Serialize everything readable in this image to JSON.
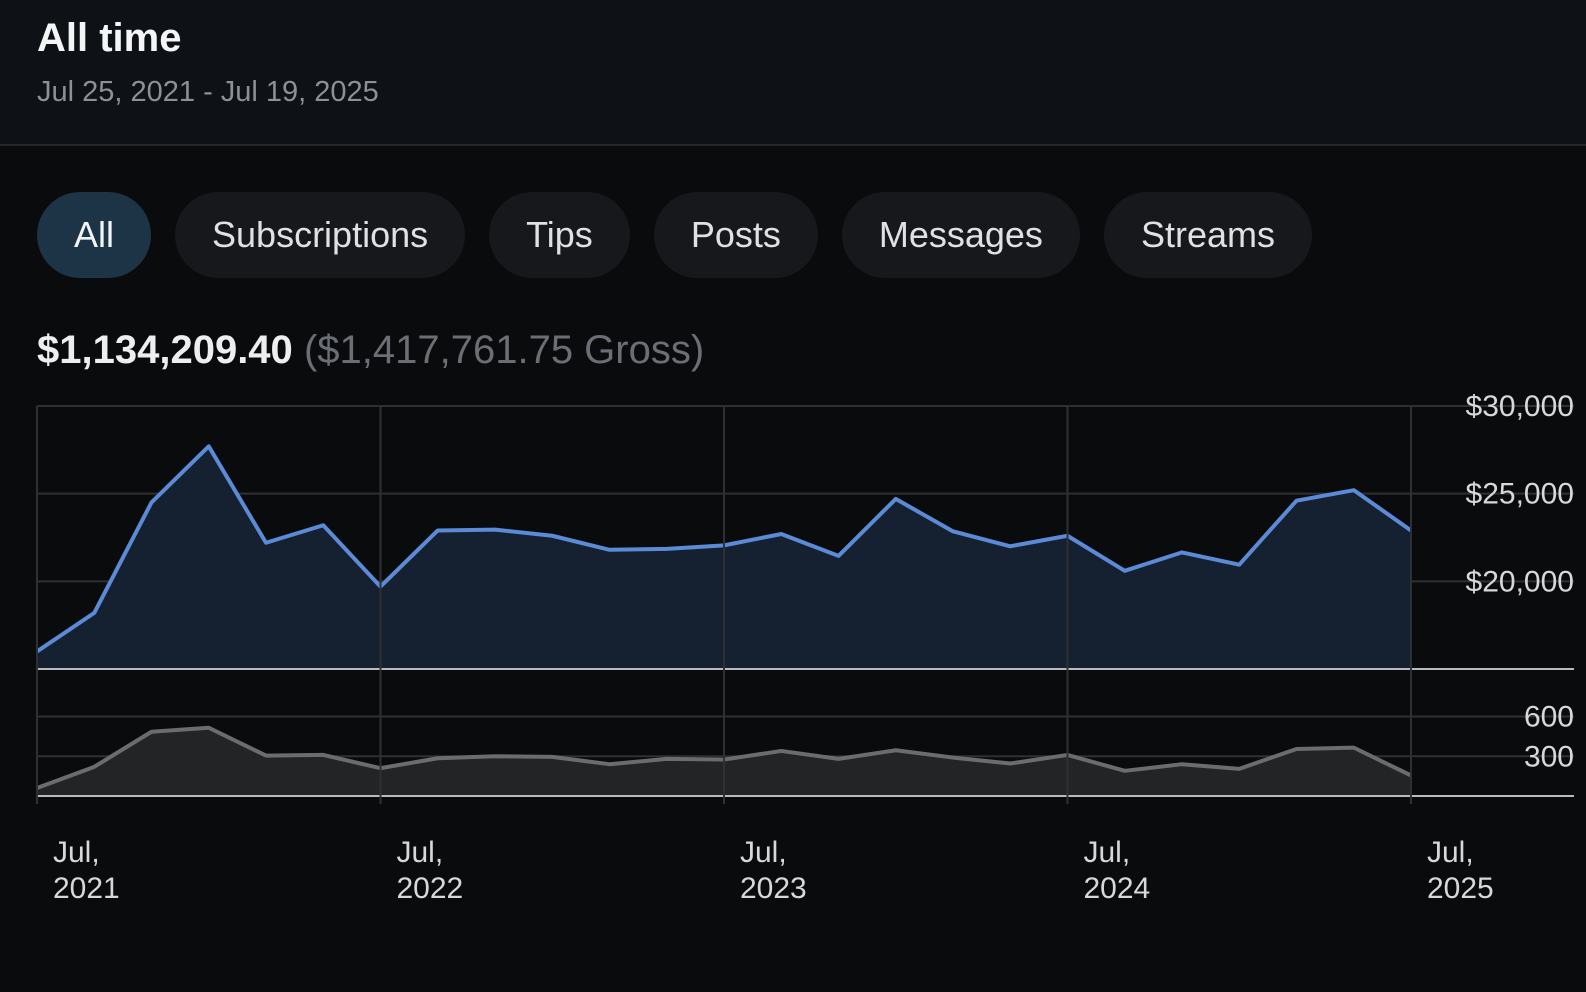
{
  "header": {
    "title": "All time",
    "date_range": "Jul 25, 2021 - Jul 19, 2025"
  },
  "tabs": [
    {
      "label": "All",
      "active": true
    },
    {
      "label": "Subscriptions",
      "active": false
    },
    {
      "label": "Tips",
      "active": false
    },
    {
      "label": "Posts",
      "active": false
    },
    {
      "label": "Messages",
      "active": false
    },
    {
      "label": "Streams",
      "active": false
    }
  ],
  "totals": {
    "net": "$1,134,209.40",
    "gross": "($1,417,761.75 Gross)"
  },
  "colors": {
    "earnings_line": "#5b8ad6",
    "earnings_fill": "#152130",
    "count_line": "#6a6c70",
    "count_fill": "#232426",
    "grid": "#2e3034",
    "active_tab": "#1d3446"
  },
  "chart_data": [
    {
      "type": "area",
      "x_labels": [
        [
          "Jul,",
          "2021"
        ],
        [
          "Jul,",
          "2022"
        ],
        [
          "Jul,",
          "2023"
        ],
        [
          "Jul,",
          "2024"
        ],
        [
          "Jul,",
          "2025"
        ]
      ],
      "x_tick_index": [
        0,
        6,
        12,
        18,
        24
      ],
      "y_ticks": [
        20000,
        25000,
        30000
      ],
      "y_tick_labels": [
        "$20,000",
        "$25,000",
        "$30,000"
      ],
      "ylim": [
        15000,
        30000
      ],
      "y_axis_side": "right",
      "grid": true,
      "series": [
        {
          "values": [
            16000,
            18200,
            24500,
            27700,
            22200,
            23200,
            19700,
            22900,
            22950,
            22600,
            21800,
            21850,
            22050,
            22700,
            21450,
            24700,
            22850,
            22000,
            22600,
            20600,
            21650,
            20950,
            24600,
            25200,
            22900
          ]
        }
      ]
    },
    {
      "type": "area",
      "y_ticks": [
        300,
        600
      ],
      "y_tick_labels": [
        "300",
        "600"
      ],
      "ylim": [
        0,
        800
      ],
      "y_axis_side": "right",
      "grid": true,
      "series": [
        {
          "values": [
            60,
            220,
            485,
            515,
            305,
            310,
            210,
            285,
            300,
            295,
            240,
            280,
            275,
            340,
            280,
            345,
            290,
            245,
            310,
            190,
            240,
            205,
            355,
            365,
            155
          ]
        }
      ]
    }
  ]
}
